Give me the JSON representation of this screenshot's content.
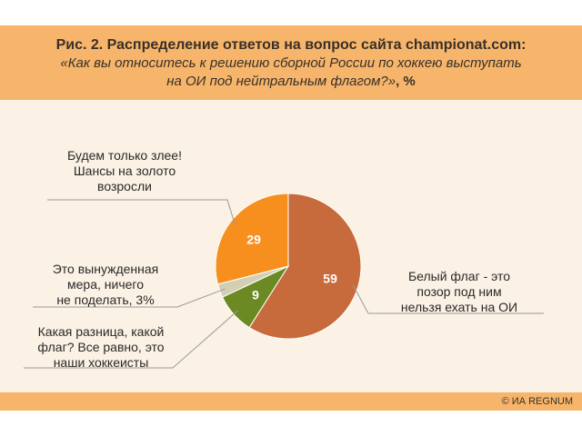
{
  "header": {
    "title": "Рис. 2. Распределение ответов на вопрос сайта championat.com:",
    "subtitle": "«Как вы относитесь к решению сборной России по хоккею выступать на ОИ под нейтральным флагом?»",
    "unit": ", %"
  },
  "footer": {
    "credit": "© ИА REGNUM"
  },
  "colors": {
    "header_bg": "#f6b56b",
    "plot_bg": "#fbf1e4",
    "slice_59": "#c86b3c",
    "slice_9": "#6b8a24",
    "slice_3": "#d3cfb2",
    "slice_29": "#f78f1e"
  },
  "chart_data": {
    "type": "pie",
    "start": "12 o'clock, clockwise",
    "slices": [
      {
        "value": 59,
        "label": "Белый флаг - это\nпозор под ним\nнельзя ехать на ОИ",
        "value_label": "59",
        "color": "#c86b3c"
      },
      {
        "value": 9,
        "label": "Какая разница, какой\nфлаг? Все равно, это\nнаши хоккеисты",
        "value_label": "9",
        "color": "#6b8a24"
      },
      {
        "value": 3,
        "label": "Это вынужденная\nмера, ничего\nне поделать, 3%",
        "value_label": "",
        "color": "#d3cfb2"
      },
      {
        "value": 29,
        "label": "Будем только злее!\nШансы на золото\nвозросли",
        "value_label": "29",
        "color": "#f78f1e"
      }
    ]
  }
}
